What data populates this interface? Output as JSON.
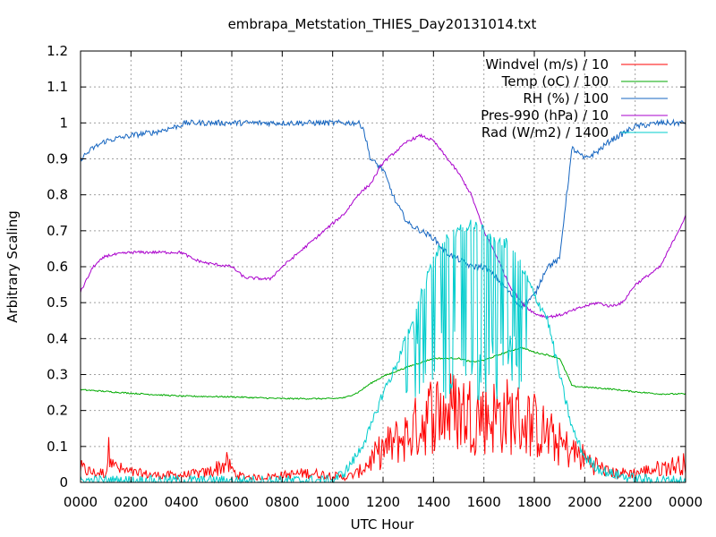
{
  "chart_data": {
    "type": "line",
    "title": "embrapa_Metstation_THIES_Day20131014.txt",
    "xlabel": "UTC Hour",
    "ylabel": "Arbitrary Scaling",
    "xlim": [
      0,
      2400
    ],
    "ylim": [
      0,
      1.2
    ],
    "x_ticks": [
      "0000",
      "0200",
      "0400",
      "0600",
      "0800",
      "1000",
      "1200",
      "1400",
      "1600",
      "1800",
      "2000",
      "2200",
      "0000"
    ],
    "y_ticks": [
      "0",
      "0.1",
      "0.2",
      "0.3",
      "0.4",
      "0.5",
      "0.6",
      "0.7",
      "0.8",
      "0.9",
      "1",
      "1.1",
      "1.2"
    ],
    "grid": true,
    "legend_position": "top-right",
    "series": [
      {
        "name": "Windvel (m/s) / 10",
        "color": "#ff0000",
        "noise": 0.03,
        "points": [
          [
            0,
            0.03
          ],
          [
            50,
            0.02
          ],
          [
            100,
            0.02
          ],
          [
            120,
            0.09
          ],
          [
            140,
            0.03
          ],
          [
            200,
            0.02
          ],
          [
            300,
            0.015
          ],
          [
            400,
            0.015
          ],
          [
            500,
            0.02
          ],
          [
            580,
            0.04
          ],
          [
            620,
            0.015
          ],
          [
            700,
            0.01
          ],
          [
            800,
            0.015
          ],
          [
            900,
            0.02
          ],
          [
            1000,
            0.015
          ],
          [
            1050,
            0.01
          ],
          [
            1100,
            0.02
          ],
          [
            1200,
            0.07
          ],
          [
            1300,
            0.1
          ],
          [
            1400,
            0.15
          ],
          [
            1500,
            0.15
          ],
          [
            1600,
            0.14
          ],
          [
            1700,
            0.14
          ],
          [
            1800,
            0.12
          ],
          [
            1900,
            0.08
          ],
          [
            2000,
            0.05
          ],
          [
            2100,
            0.02
          ],
          [
            2200,
            0.02
          ],
          [
            2300,
            0.03
          ],
          [
            2400,
            0.04
          ]
        ]
      },
      {
        "name": "Temp (oC) / 100",
        "color": "#00aa00",
        "noise": 0.002,
        "points": [
          [
            0,
            0.258
          ],
          [
            200,
            0.248
          ],
          [
            400,
            0.24
          ],
          [
            600,
            0.238
          ],
          [
            800,
            0.233
          ],
          [
            1000,
            0.233
          ],
          [
            1050,
            0.236
          ],
          [
            1100,
            0.25
          ],
          [
            1150,
            0.275
          ],
          [
            1200,
            0.295
          ],
          [
            1300,
            0.322
          ],
          [
            1400,
            0.345
          ],
          [
            1500,
            0.345
          ],
          [
            1550,
            0.335
          ],
          [
            1600,
            0.34
          ],
          [
            1700,
            0.365
          ],
          [
            1750,
            0.375
          ],
          [
            1800,
            0.362
          ],
          [
            1850,
            0.355
          ],
          [
            1900,
            0.345
          ],
          [
            1930,
            0.3
          ],
          [
            1950,
            0.268
          ],
          [
            2000,
            0.265
          ],
          [
            2100,
            0.26
          ],
          [
            2200,
            0.252
          ],
          [
            2300,
            0.246
          ],
          [
            2400,
            0.246
          ]
        ]
      },
      {
        "name": "RH (%) / 100",
        "color": "#1565c0",
        "noise": 0.008,
        "points": [
          [
            0,
            0.9
          ],
          [
            50,
            0.93
          ],
          [
            100,
            0.95
          ],
          [
            200,
            0.965
          ],
          [
            300,
            0.975
          ],
          [
            380,
            0.99
          ],
          [
            420,
            1.0
          ],
          [
            1100,
            1.0
          ],
          [
            1120,
            0.99
          ],
          [
            1150,
            0.9
          ],
          [
            1200,
            0.87
          ],
          [
            1250,
            0.78
          ],
          [
            1300,
            0.72
          ],
          [
            1400,
            0.68
          ],
          [
            1450,
            0.64
          ],
          [
            1500,
            0.62
          ],
          [
            1550,
            0.6
          ],
          [
            1600,
            0.6
          ],
          [
            1650,
            0.57
          ],
          [
            1700,
            0.53
          ],
          [
            1730,
            0.5
          ],
          [
            1750,
            0.49
          ],
          [
            1800,
            0.52
          ],
          [
            1850,
            0.6
          ],
          [
            1900,
            0.62
          ],
          [
            1920,
            0.75
          ],
          [
            1950,
            0.93
          ],
          [
            2000,
            0.9
          ],
          [
            2050,
            0.92
          ],
          [
            2100,
            0.95
          ],
          [
            2200,
            0.99
          ],
          [
            2300,
            1.0
          ],
          [
            2400,
            1.0
          ]
        ]
      },
      {
        "name": "Pres-990 (hPa) / 10",
        "color": "#aa00cc",
        "noise": 0.004,
        "points": [
          [
            0,
            0.53
          ],
          [
            50,
            0.6
          ],
          [
            100,
            0.63
          ],
          [
            200,
            0.64
          ],
          [
            300,
            0.64
          ],
          [
            400,
            0.64
          ],
          [
            450,
            0.62
          ],
          [
            500,
            0.61
          ],
          [
            600,
            0.6
          ],
          [
            650,
            0.57
          ],
          [
            750,
            0.565
          ],
          [
            800,
            0.6
          ],
          [
            900,
            0.66
          ],
          [
            1000,
            0.72
          ],
          [
            1050,
            0.75
          ],
          [
            1100,
            0.8
          ],
          [
            1150,
            0.83
          ],
          [
            1200,
            0.89
          ],
          [
            1300,
            0.95
          ],
          [
            1350,
            0.965
          ],
          [
            1400,
            0.95
          ],
          [
            1500,
            0.86
          ],
          [
            1550,
            0.8
          ],
          [
            1600,
            0.7
          ],
          [
            1650,
            0.63
          ],
          [
            1700,
            0.55
          ],
          [
            1750,
            0.5
          ],
          [
            1800,
            0.47
          ],
          [
            1850,
            0.46
          ],
          [
            1900,
            0.465
          ],
          [
            2000,
            0.49
          ],
          [
            2050,
            0.5
          ],
          [
            2100,
            0.49
          ],
          [
            2150,
            0.5
          ],
          [
            2200,
            0.55
          ],
          [
            2300,
            0.6
          ],
          [
            2400,
            0.74
          ]
        ]
      },
      {
        "name": "Rad (W/m2) / 1400",
        "color": "#00cccc",
        "noise": 0.015,
        "points": [
          [
            0,
            0.005
          ],
          [
            1000,
            0.005
          ],
          [
            1050,
            0.03
          ],
          [
            1100,
            0.08
          ],
          [
            1150,
            0.15
          ],
          [
            1200,
            0.25
          ],
          [
            1250,
            0.32
          ],
          [
            1300,
            0.42
          ],
          [
            1350,
            0.52
          ],
          [
            1400,
            0.62
          ],
          [
            1450,
            0.68
          ],
          [
            1500,
            0.7
          ],
          [
            1550,
            0.72
          ],
          [
            1600,
            0.7
          ],
          [
            1650,
            0.68
          ],
          [
            1700,
            0.66
          ],
          [
            1750,
            0.6
          ],
          [
            1800,
            0.52
          ],
          [
            1850,
            0.46
          ],
          [
            1900,
            0.3
          ],
          [
            1950,
            0.15
          ],
          [
            2000,
            0.07
          ],
          [
            2050,
            0.04
          ],
          [
            2100,
            0.025
          ],
          [
            2200,
            0.01
          ],
          [
            2300,
            0.005
          ],
          [
            2400,
            0.005
          ]
        ],
        "dips": {
          "from": 1280,
          "to": 1780,
          "low": 0.22
        }
      }
    ]
  }
}
